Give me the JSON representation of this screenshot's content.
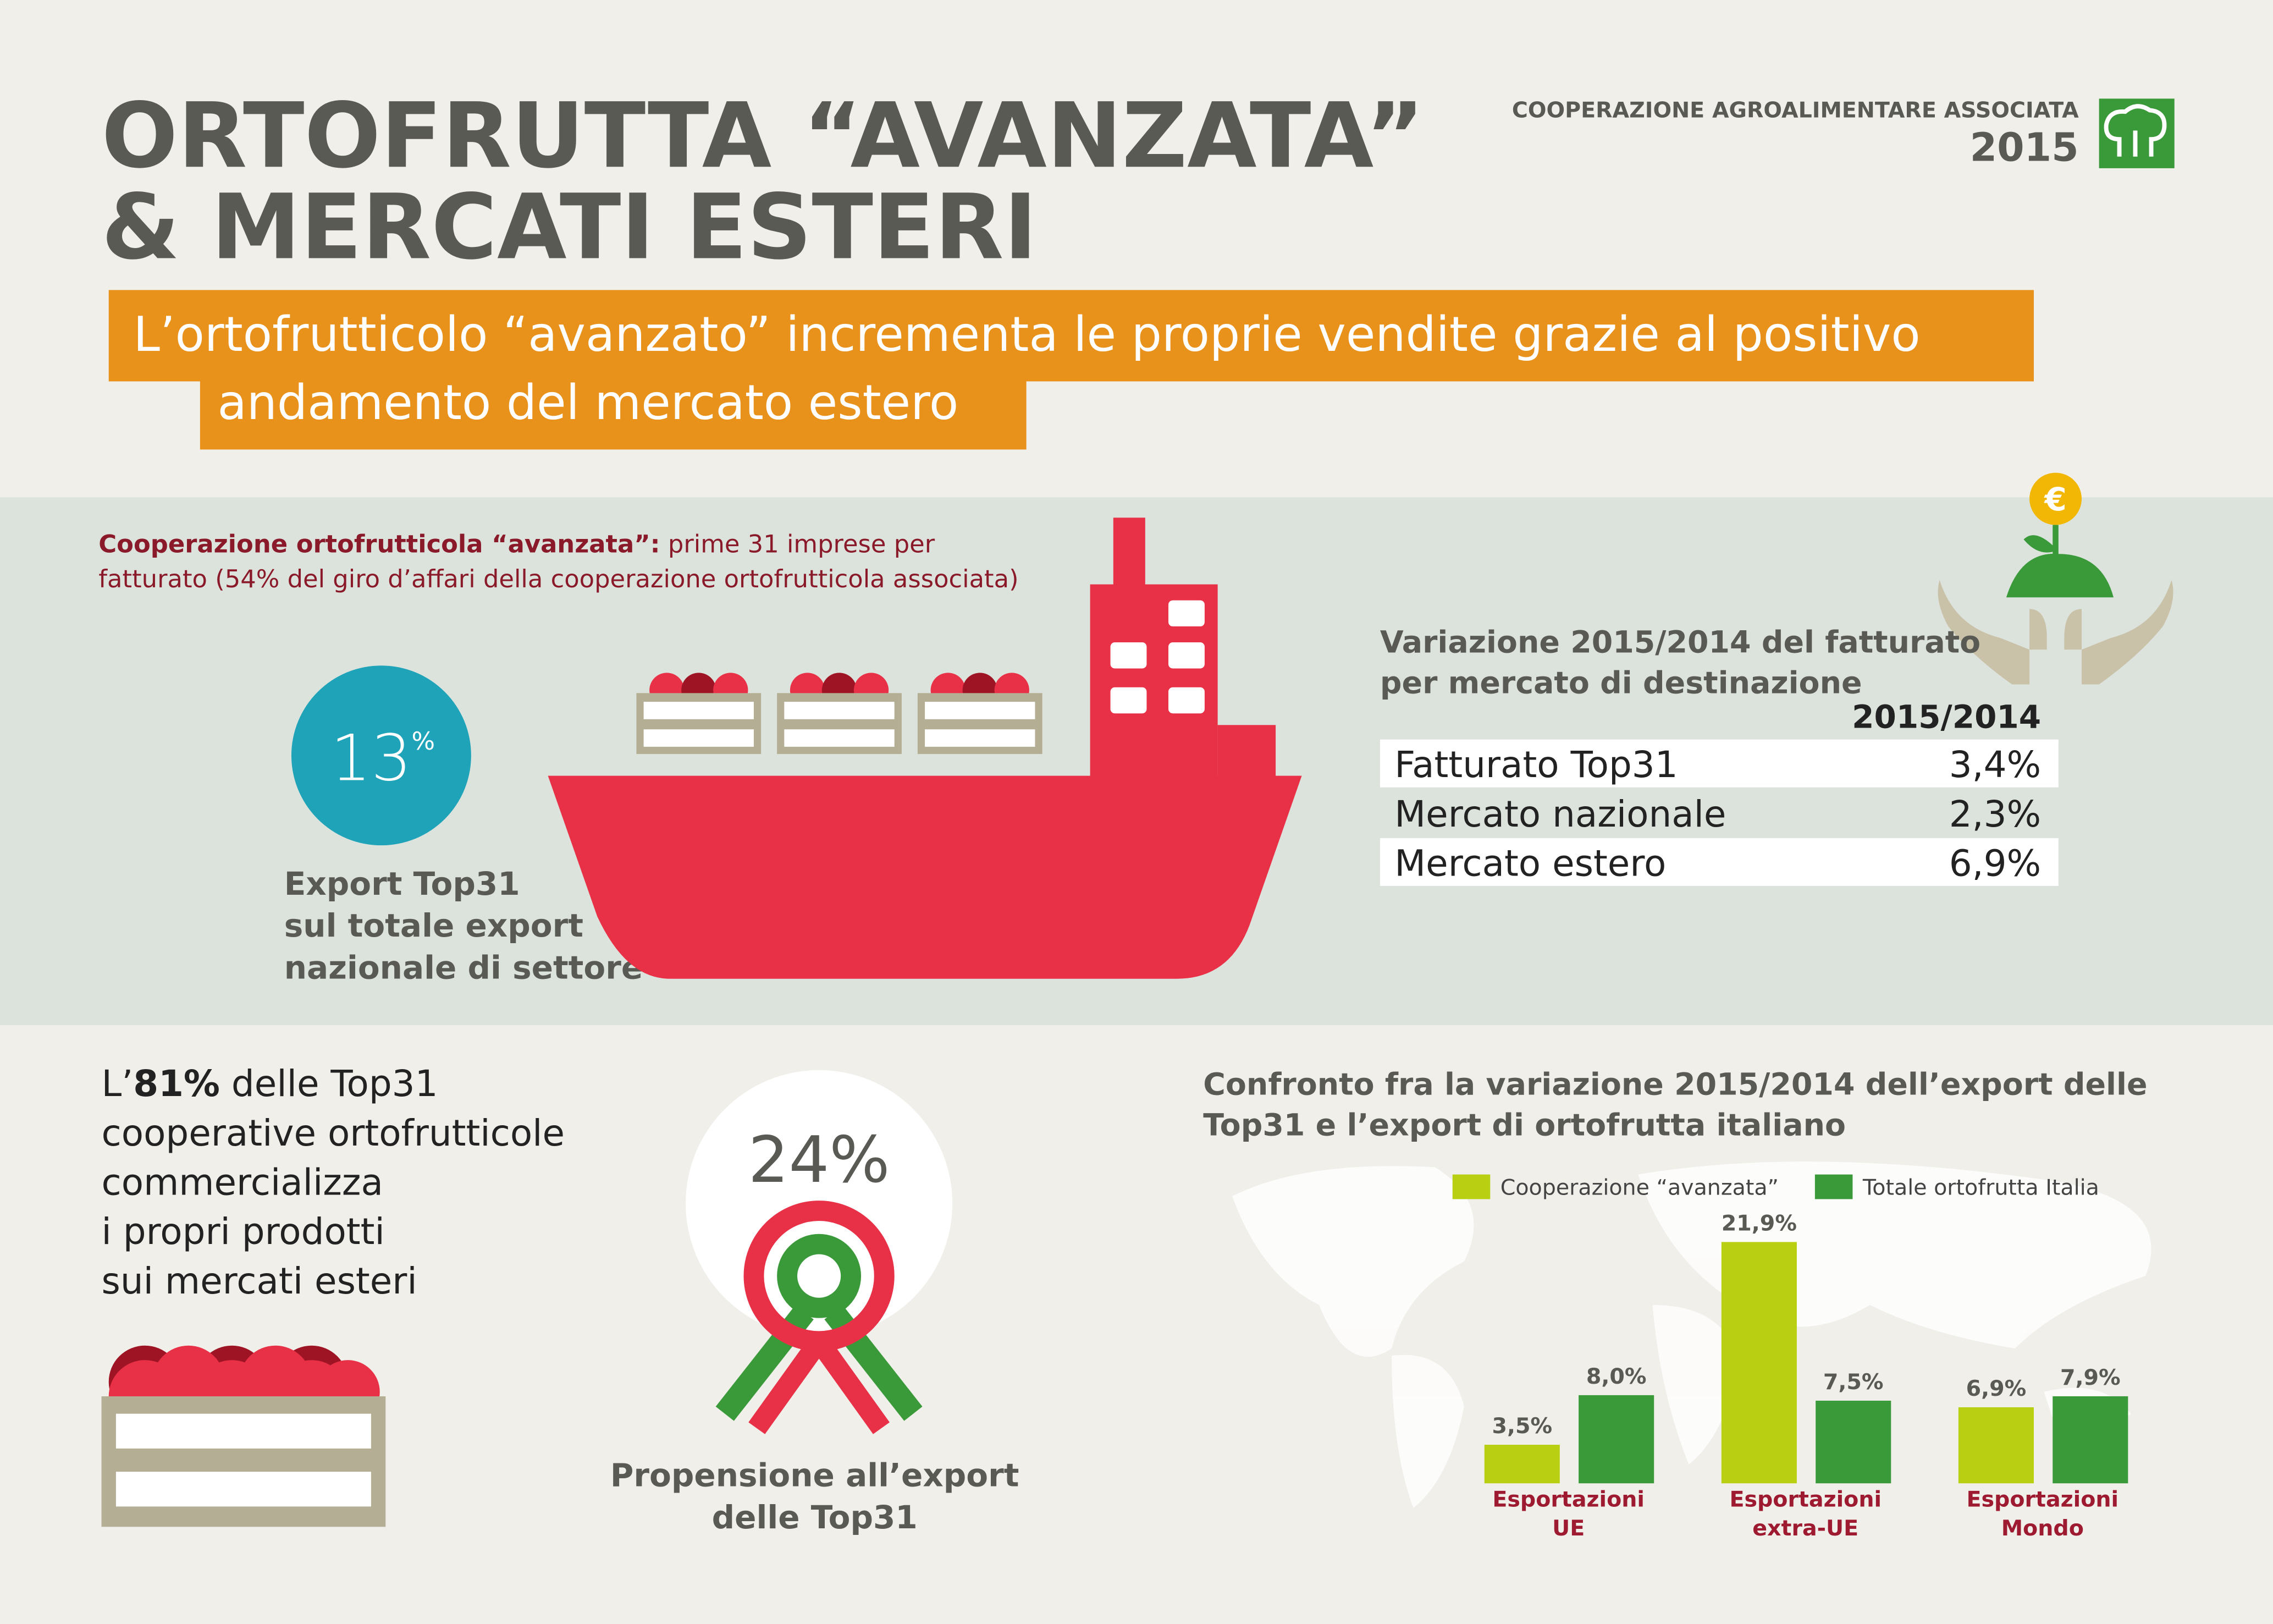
{
  "header": {
    "title": [
      "ORTOFRUTTA “AVANZATA”",
      "& MERCATI ESTERI"
    ],
    "org": "COOPERAZIONE AGROALIMENTARE ASSOCIATA",
    "year": "2015"
  },
  "banner": [
    "L’ortofrutticolo “avanzato” incrementa le proprie vendite grazie al positivo",
    "andamento del mercato estero"
  ],
  "intro": {
    "bold": "Cooperazione ortofrutticola “avanzata”:",
    "text": " prime 31 imprese per fatturato (54% del giro d’affari della cooperazione ortofrutticola associata)"
  },
  "export_share": {
    "value": "13",
    "unit": "%",
    "caption": [
      "Export Top31",
      "sul totale export",
      "nazionale di settore"
    ]
  },
  "table": {
    "title": [
      "Variazione 2015/2014 del fatturato",
      "per mercato di destinazione"
    ],
    "column": "2015/2014",
    "rows": [
      [
        "Fatturato Top31",
        "3,4%"
      ],
      [
        "Mercato nazionale",
        "2,3%"
      ],
      [
        "Mercato estero",
        "6,9%"
      ]
    ]
  },
  "markets": {
    "lead": "L’",
    "highlight": "81%",
    "lines": [
      " delle Top31",
      "cooperative ortofrutticole",
      "commercializza",
      "i propri prodotti",
      "sui mercati esteri"
    ]
  },
  "propensity": {
    "value": "24%",
    "caption": [
      "Propensione all’export",
      "delle Top31"
    ]
  },
  "chart_data": {
    "type": "bar",
    "title": [
      "Confronto fra la variazione 2015/2014 dell’export delle",
      "Top31 e l’export di ortofrutta italiano"
    ],
    "categories": [
      "Esportazioni UE",
      "Esportazioni extra-UE",
      "Esportazioni Mondo"
    ],
    "series": [
      {
        "name": "Cooperazione “avanzata”",
        "color": "#b9cf12",
        "values": [
          3.5,
          21.9,
          6.9
        ],
        "value_labels": [
          "3,5%",
          "21,9%",
          "6,9%"
        ]
      },
      {
        "name": "Totale ortofrutta Italia",
        "color": "#3a9a3a",
        "values": [
          8.0,
          7.5,
          7.9
        ],
        "value_labels": [
          "8,0%",
          "7,5%",
          "7,9%"
        ]
      }
    ]
  }
}
